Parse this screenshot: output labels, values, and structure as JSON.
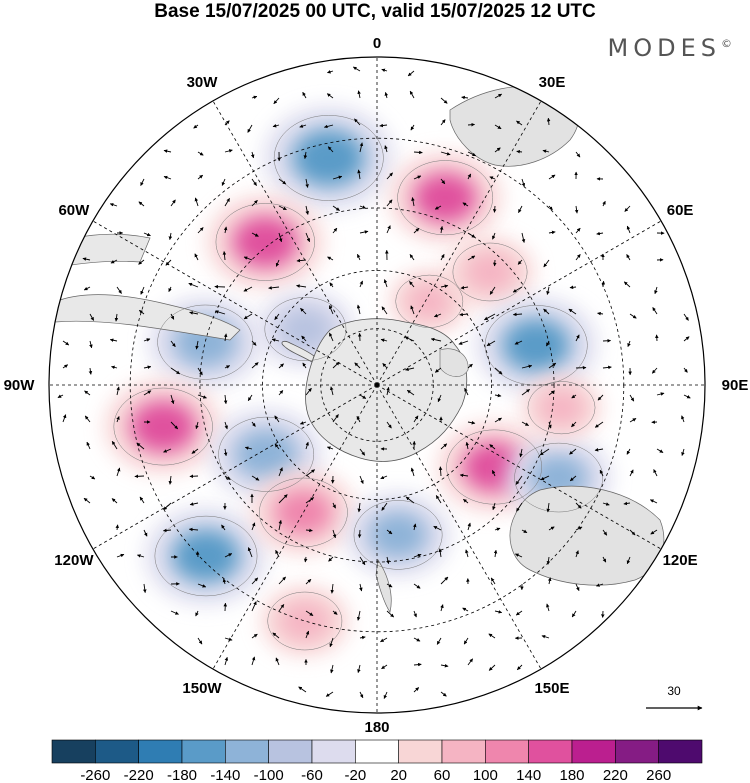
{
  "header": {
    "title": "Base 15/07/2025 00 UTC, valid 15/07/2025 12 UTC",
    "brand": "MODES",
    "brand_mark": "©"
  },
  "map": {
    "projection": "south-polar-stereographic",
    "longitude_labels": [
      {
        "text": "0",
        "lon": 0
      },
      {
        "text": "30E",
        "lon": 30
      },
      {
        "text": "60E",
        "lon": 60
      },
      {
        "text": "90E",
        "lon": 90
      },
      {
        "text": "120E",
        "lon": 120
      },
      {
        "text": "150E",
        "lon": 150
      },
      {
        "text": "180",
        "lon": 180
      },
      {
        "text": "150W",
        "lon": -150
      },
      {
        "text": "120W",
        "lon": -120
      },
      {
        "text": "90W",
        "lon": -90
      },
      {
        "text": "60W",
        "lon": -60
      },
      {
        "text": "30W",
        "lon": -30
      }
    ],
    "latitude_circles": [
      -75,
      -60,
      -45,
      -30
    ],
    "vector_reference": {
      "value": "30"
    }
  },
  "colorbar": {
    "ticks": [
      "-260",
      "-220",
      "-180",
      "-140",
      "-100",
      "-60",
      "-20",
      "20",
      "60",
      "100",
      "140",
      "180",
      "220",
      "260"
    ],
    "colors": [
      "#17405f",
      "#1d5a87",
      "#2f7db3",
      "#5a9bc8",
      "#8eb3d8",
      "#b8c3e0",
      "#dddcee",
      "#ffffff",
      "#f8d6d6",
      "#f5b4c3",
      "#ef86ad",
      "#e0519e",
      "#bb1f8f",
      "#851c84",
      "#4e0a6e"
    ]
  },
  "anomalies": [
    {
      "lon": -12,
      "lat": -33,
      "value": -180
    },
    {
      "lon": 20,
      "lat": -40,
      "value": 140
    },
    {
      "lon": -38,
      "lat": -44,
      "value": 150
    },
    {
      "lon": -52,
      "lat": -66,
      "value": -100
    },
    {
      "lon": 32,
      "lat": -64,
      "value": 60
    },
    {
      "lon": 45,
      "lat": -49,
      "value": 80
    },
    {
      "lon": 76,
      "lat": -48,
      "value": -160
    },
    {
      "lon": -76,
      "lat": -45,
      "value": -140
    },
    {
      "lon": -101,
      "lat": -36,
      "value": 150
    },
    {
      "lon": -122,
      "lat": -56,
      "value": -140
    },
    {
      "lon": -135,
      "lat": -31,
      "value": -160
    },
    {
      "lon": -150,
      "lat": -52,
      "value": 120
    },
    {
      "lon": 172,
      "lat": -51,
      "value": -120
    },
    {
      "lon": 125,
      "lat": -53,
      "value": 140
    },
    {
      "lon": 117,
      "lat": -39,
      "value": -120
    },
    {
      "lon": 97,
      "lat": -43,
      "value": 60
    },
    {
      "lon": -163,
      "lat": -30,
      "value": 80
    }
  ]
}
